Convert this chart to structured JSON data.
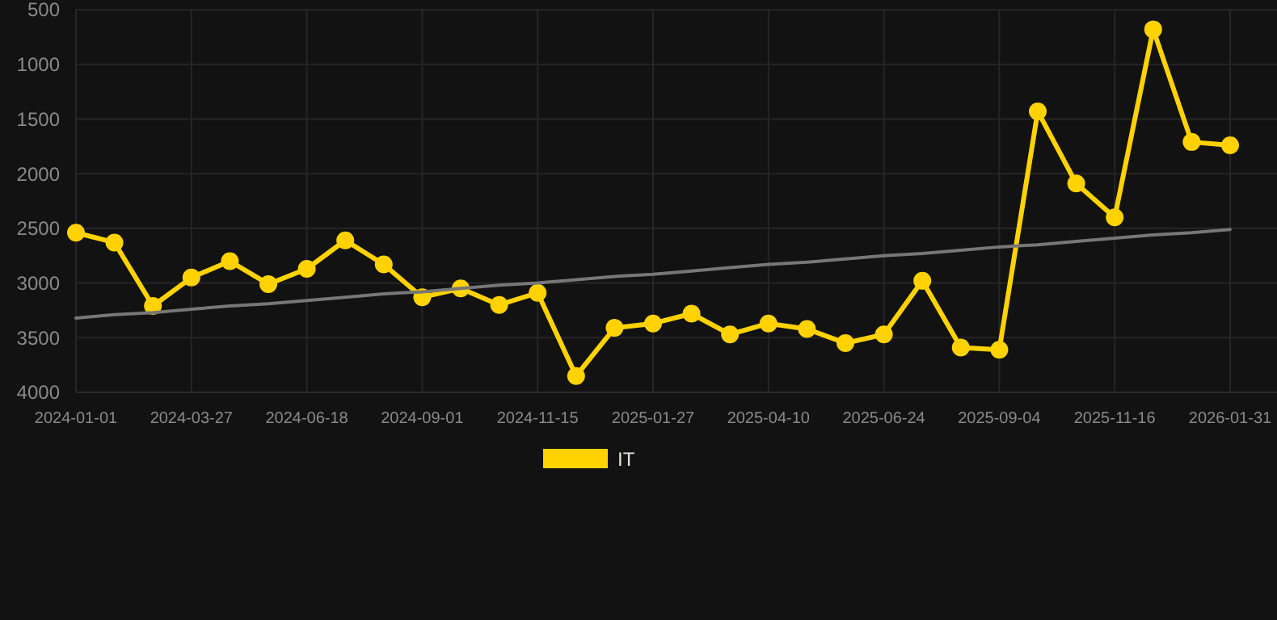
{
  "chart_data": {
    "type": "line",
    "categories": [
      "2024-01-01",
      null,
      null,
      "2024-03-27",
      null,
      null,
      "2024-06-18",
      null,
      null,
      "2024-09-01",
      null,
      null,
      "2024-11-15",
      null,
      null,
      "2025-01-27",
      null,
      null,
      "2025-04-10",
      null,
      null,
      "2025-06-24",
      null,
      null,
      "2025-09-04",
      null,
      null,
      "2025-11-16",
      null,
      null,
      "2026-01-31"
    ],
    "series": [
      {
        "name": "IT",
        "color": "#ffd200",
        "marker": "circle",
        "values": [
          2540,
          2630,
          3210,
          2950,
          2800,
          3010,
          2870,
          2610,
          2830,
          3130,
          3050,
          3200,
          3090,
          3850,
          3410,
          3370,
          3280,
          3470,
          3370,
          3420,
          3550,
          3470,
          2980,
          3590,
          3610,
          1430,
          2090,
          2400,
          680,
          1710,
          1740
        ]
      },
      {
        "type": "line",
        "color": "#777777",
        "marker": "none",
        "values": [
          3320,
          3290,
          3270,
          3240,
          3210,
          3190,
          3160,
          3130,
          3100,
          3080,
          3050,
          3020,
          3000,
          2970,
          2940,
          2920,
          2890,
          2860,
          2830,
          2810,
          2780,
          2750,
          2730,
          2700,
          2670,
          2650,
          2620,
          2590,
          2560,
          2540,
          2510
        ]
      }
    ],
    "ylim": [
      4000,
      500
    ],
    "yticks": [
      500,
      1000,
      1500,
      2000,
      2500,
      3000,
      3500,
      4000
    ],
    "grid": true,
    "legend": "bottom"
  }
}
